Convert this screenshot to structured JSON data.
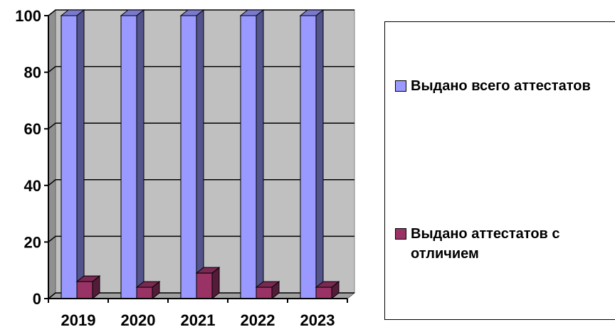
{
  "chart_data": {
    "type": "bar",
    "categories": [
      "2019",
      "2020",
      "2021",
      "2022",
      "2023"
    ],
    "series": [
      {
        "name": "Выдано всего аттестатов",
        "values": [
          100,
          100,
          100,
          100,
          100
        ],
        "color": "#9999ff"
      },
      {
        "name": "Выдано аттестатов с отличием",
        "values": [
          6,
          4,
          9,
          4,
          4
        ],
        "color": "#993366"
      }
    ],
    "y_ticks": [
      "0",
      "20",
      "40",
      "60",
      "80",
      "100"
    ],
    "ylim": [
      0,
      100
    ],
    "grid": true,
    "style": "3d",
    "legend_position": "right"
  }
}
